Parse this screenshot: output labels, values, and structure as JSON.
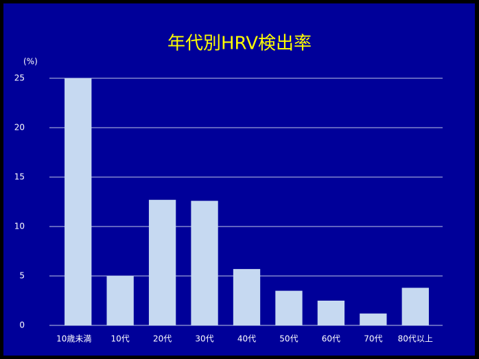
{
  "chart_data": {
    "type": "bar",
    "title": "年代別HRV検出率",
    "y_label": "(%)",
    "categories": [
      "10歳未満",
      "10代",
      "20代",
      "30代",
      "40代",
      "50代",
      "60代",
      "70代",
      "80代以上"
    ],
    "values": [
      25,
      5.0,
      12.7,
      12.6,
      5.7,
      3.5,
      2.5,
      1.2,
      3.8
    ],
    "color": "#c6d9f1",
    "ylim": [
      0,
      25
    ],
    "yticks": [
      0,
      5,
      10,
      15,
      20,
      25
    ],
    "grid": true
  }
}
